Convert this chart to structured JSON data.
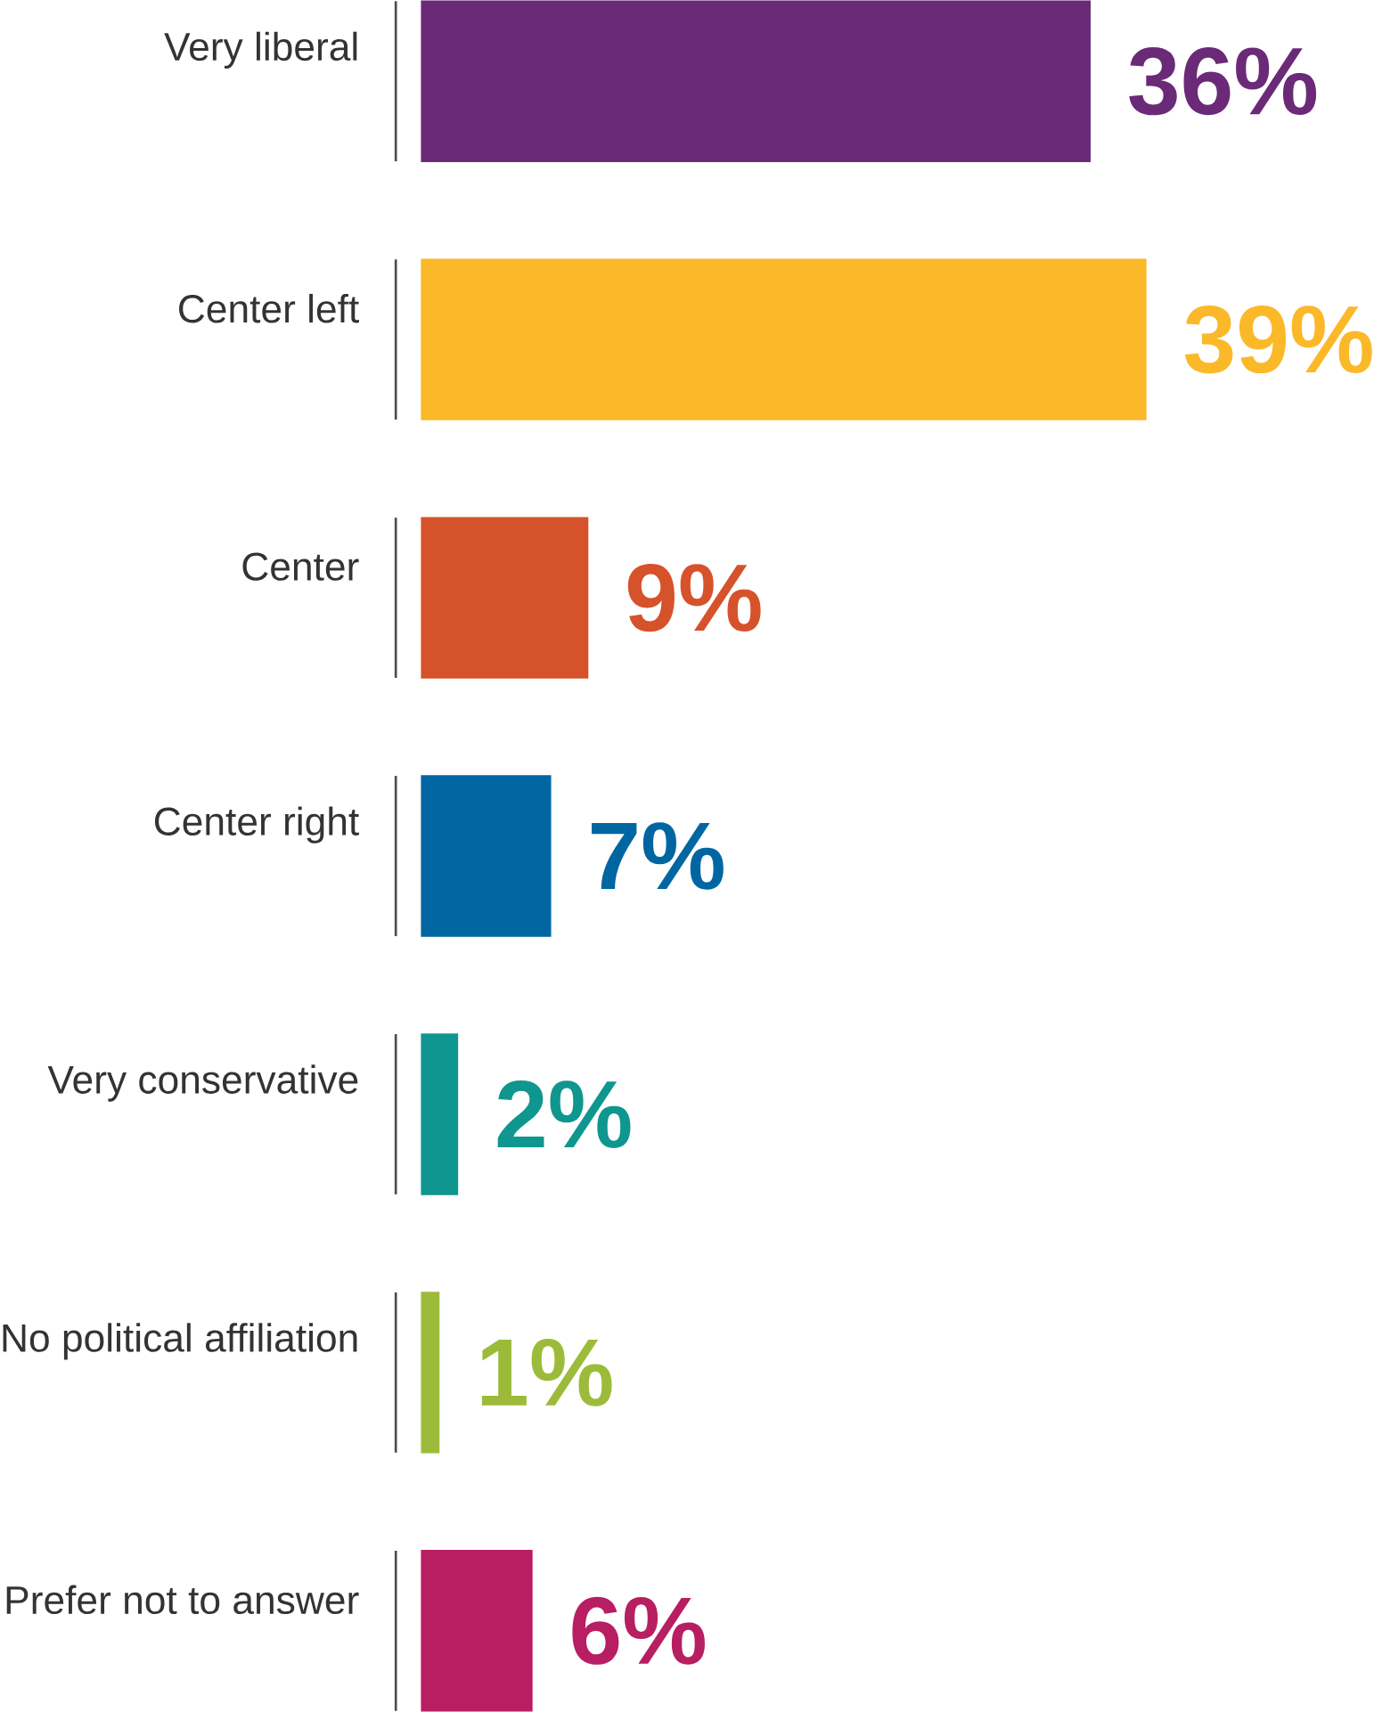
{
  "chart_data": {
    "type": "bar",
    "orientation": "horizontal",
    "categories": [
      "Very liberal",
      "Center left",
      "Center",
      "Center right",
      "Very conservative",
      "No political affiliation",
      "Prefer not to answer"
    ],
    "values": [
      36,
      39,
      9,
      7,
      2,
      1,
      6
    ],
    "value_labels": [
      "36%",
      "39%",
      "9%",
      "7%",
      "2%",
      "1%",
      "6%"
    ],
    "colors": [
      "#6b2a78",
      "#fbb829",
      "#d6522b",
      "#0066a1",
      "#0f968e",
      "#9dbb3a",
      "#b81e62"
    ]
  }
}
